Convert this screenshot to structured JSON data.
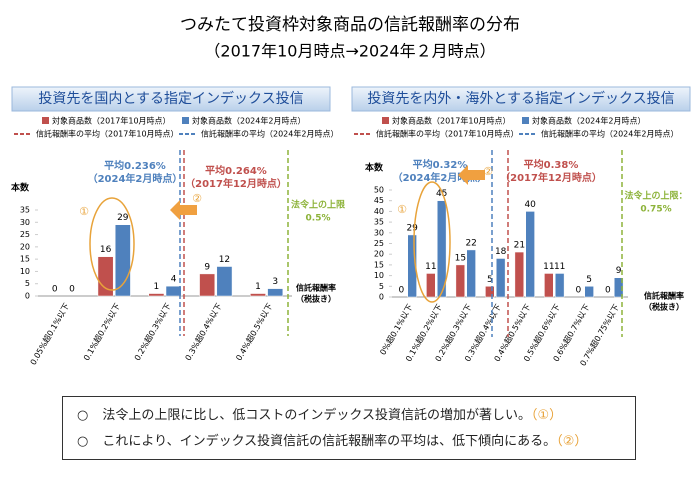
{
  "title": "つみたて投資枠対象商品の信託報酬率の分布",
  "subtitle": "（2017年10月時点→2024年２月時点）",
  "chart_data": [
    {
      "type": "bar",
      "title": "投資先を国内とする指定インデックス投信",
      "y_label": "本数",
      "x_label": [
        "信託報酬率",
        "（税抜き）"
      ],
      "categories": [
        "0.05%超0.1%以下",
        "0.1%超0.2%以下",
        "0.2%超0.3%以下",
        "0.3%超0.4%以下",
        "0.4%超0.5%以下"
      ],
      "series": [
        {
          "name": "対象商品数（2017年10月時点）",
          "color": "#c0504d",
          "values": [
            0,
            16,
            1,
            9,
            1
          ]
        },
        {
          "name": "対象商品数（2024年2月時点）",
          "color": "#4f81bd",
          "values": [
            0,
            29,
            4,
            12,
            3
          ]
        }
      ],
      "lines": [
        {
          "name": "信託報酬率の平均（2017年10月時点）",
          "color": "#c0504d"
        },
        {
          "name": "信託報酬率の平均（2024年2月時点）",
          "color": "#4f81bd"
        }
      ],
      "annotations": [
        {
          "lines": [
            "平均0.236%",
            "（2024年2月時点）"
          ],
          "color": "#4f81bd"
        },
        {
          "lines": [
            "平均0.264%",
            "（2017年12月時点）"
          ],
          "color": "#c0504d"
        },
        {
          "lines": [
            "法令上の上限",
            "0.5%"
          ],
          "color": "#8db33a"
        }
      ],
      "markers": [
        "①",
        "②"
      ],
      "ylim": [
        0,
        35
      ],
      "yticks": [
        0,
        5,
        10,
        15,
        20,
        25,
        30,
        35
      ]
    },
    {
      "type": "bar",
      "title": "投資先を内外・海外とする指定インデックス投信",
      "y_label": "本数",
      "x_label": [
        "信託報酬率",
        "（税抜き）"
      ],
      "categories": [
        "0%超0.1%以下",
        "0.1%超0.2%以下",
        "0.2%超0.3%以下",
        "0.3%超0.4%以下",
        "0.4%超0.5%以下",
        "0.5%超0.6%以下",
        "0.6%超0.7%以下",
        "0.7%超0.75%以下"
      ],
      "series": [
        {
          "name": "対象商品数（2017年10月時点）",
          "color": "#c0504d",
          "values": [
            0,
            11,
            15,
            5,
            21,
            11,
            0,
            0
          ]
        },
        {
          "name": "対象商品数（2024年2月時点）",
          "color": "#4f81bd",
          "values": [
            29,
            45,
            22,
            18,
            40,
            11,
            5,
            9
          ]
        }
      ],
      "lines": [
        {
          "name": "信託報酬率の平均（2017年10月時点）",
          "color": "#c0504d"
        },
        {
          "name": "信託報酬率の平均（2024年2月時点）",
          "color": "#4f81bd"
        }
      ],
      "annotations": [
        {
          "lines": [
            "平均0.32%",
            "（2024年2月時点）"
          ],
          "color": "#4f81bd"
        },
        {
          "lines": [
            "平均0.38%",
            "（2017年12月時点）"
          ],
          "color": "#c0504d"
        },
        {
          "lines": [
            "法令上の上限：",
            "0.75%"
          ],
          "color": "#8db33a"
        }
      ],
      "markers": [
        "①",
        "②"
      ],
      "ylim": [
        0,
        50
      ],
      "yticks": [
        0,
        5,
        10,
        15,
        20,
        25,
        30,
        35,
        40,
        45,
        50
      ]
    }
  ],
  "notes": [
    {
      "bullet": "○",
      "text": "法令上の上限に比し、低コストのインデックス投資信託の増加が著しい。",
      "ref": "（①）"
    },
    {
      "bullet": "○",
      "text": "これにより、インデックス投資信託の信託報酬率の平均は、低下傾向にある。",
      "ref": "（②）"
    }
  ]
}
